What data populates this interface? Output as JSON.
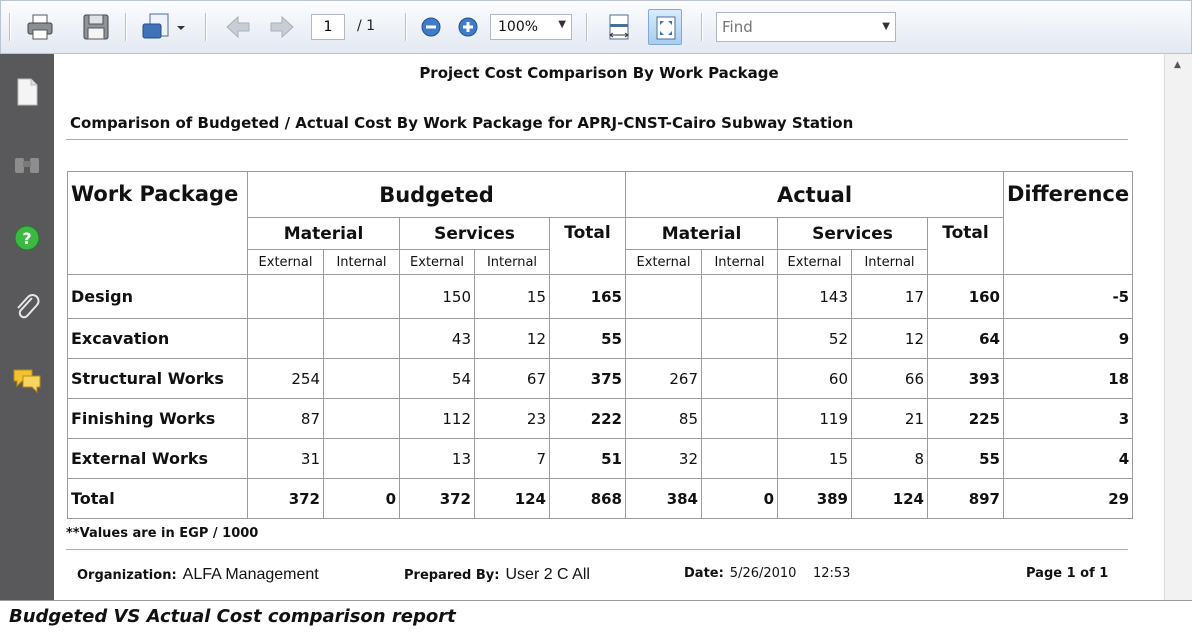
{
  "toolbar": {
    "page_current": "1",
    "page_total": "/ 1",
    "zoom": "100%",
    "find_placeholder": "Find"
  },
  "report": {
    "title": "Project Cost Comparison By Work Package",
    "subtitle": "Comparison of Budgeted / Actual Cost By Work Package for APRJ-CNST-Cairo Subway Station",
    "headers": {
      "work_package": "Work Package",
      "budgeted": "Budgeted",
      "actual": "Actual",
      "difference": "Difference",
      "material": "Material",
      "services": "Services",
      "total": "Total",
      "external": "External",
      "internal": "Internal"
    },
    "rows": [
      {
        "name": "Design",
        "cells": [
          "",
          "",
          "150",
          "15",
          "165",
          "",
          "",
          "143",
          "17",
          "160",
          "-5"
        ]
      },
      {
        "name": "Excavation",
        "cells": [
          "",
          "",
          "43",
          "12",
          "55",
          "",
          "",
          "52",
          "12",
          "64",
          "9"
        ]
      },
      {
        "name": "Structural Works",
        "cells": [
          "254",
          "",
          "54",
          "67",
          "375",
          "267",
          "",
          "60",
          "66",
          "393",
          "18"
        ]
      },
      {
        "name": "Finishing Works",
        "cells": [
          "87",
          "",
          "112",
          "23",
          "222",
          "85",
          "",
          "119",
          "21",
          "225",
          "3"
        ]
      },
      {
        "name": "External Works",
        "cells": [
          "31",
          "",
          "13",
          "7",
          "51",
          "32",
          "",
          "15",
          "8",
          "55",
          "4"
        ]
      },
      {
        "name": "Total",
        "cells": [
          "372",
          "0",
          "372",
          "124",
          "868",
          "384",
          "0",
          "389",
          "124",
          "897",
          "29"
        ]
      }
    ],
    "note": "**Values are in EGP / 1000",
    "footer": {
      "org_label": "Organization:",
      "org_value": "ALFA Management",
      "prepared_label": "Prepared By:",
      "prepared_value": "User 2 C All",
      "date_label": "Date:",
      "date_value": "5/26/2010    12:53",
      "page": "Page 1 of 1"
    }
  },
  "caption": "Budgeted VS Actual Cost comparison report"
}
